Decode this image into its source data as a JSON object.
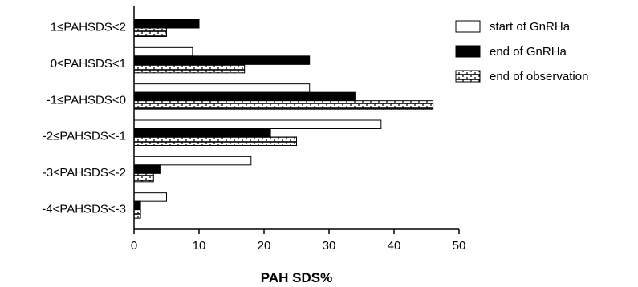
{
  "chart_data": {
    "type": "bar",
    "orientation": "horizontal",
    "categories": [
      "1≤PAHSDS<2",
      "0≤PAHSDS<1",
      "-1≤PAHSDS<0",
      "-2≤PAHSDS<-1",
      "-3≤PAHSDS<-2",
      "-4<PAHSDS<-3"
    ],
    "series": [
      {
        "name": "start of GnRHa",
        "values": [
          0,
          9,
          27,
          38,
          18,
          5
        ],
        "color": "#ffffff"
      },
      {
        "name": "end of GnRHa",
        "values": [
          10,
          27,
          34,
          21,
          4,
          1
        ],
        "color": "#000000"
      },
      {
        "name": "end of observation",
        "values": [
          5,
          17,
          46,
          25,
          3,
          1
        ],
        "color": "#ffffff",
        "pattern": "brick"
      }
    ],
    "xlabel": "PAH SDS%",
    "ylabel": "",
    "xlim": [
      0,
      50
    ],
    "xticks": [
      0,
      10,
      20,
      30,
      40,
      50
    ],
    "grid": false,
    "legend_position": "top-right"
  }
}
